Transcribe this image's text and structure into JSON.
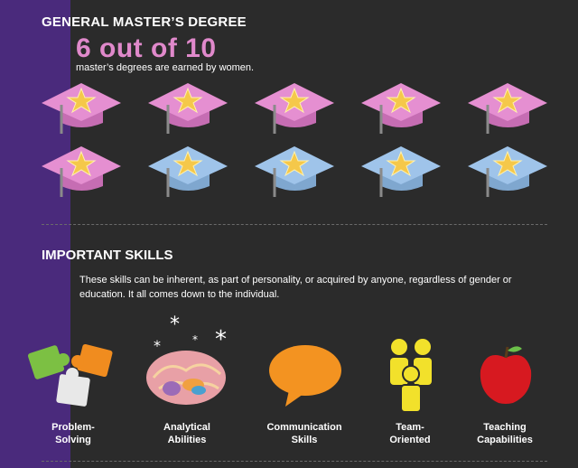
{
  "degree_section": {
    "title": "GENERAL MASTER’S DEGREE",
    "stat": "6 out of 10",
    "caption": "master’s degrees are earned by women.",
    "women_caps": 6,
    "total_caps": 10
  },
  "skills_section": {
    "title": "IMPORTANT SKILLS",
    "description": "These skills can be inherent, as part of personality, or acquired by anyone, regardless of gender or education. It all comes down to the individual.",
    "skills": [
      {
        "line1": "Problem-",
        "line2": "Solving",
        "icon": "puzzle-icon"
      },
      {
        "line1": "Analytical",
        "line2": "Abilities",
        "icon": "brain-icon"
      },
      {
        "line1": "Communication",
        "line2": "Skills",
        "icon": "speech-bubble-icon"
      },
      {
        "line1": "Team-",
        "line2": "Oriented",
        "icon": "team-icon"
      },
      {
        "line1": "Teaching",
        "line2": "Capabilities",
        "icon": "apple-icon"
      }
    ]
  },
  "colors": {
    "background": "#2b2b2b",
    "stripe": "#4a2a7c",
    "women_cap": "#e58fd1",
    "men_cap": "#9fc4ea",
    "star": "#f5c84a",
    "accent_pink": "#e089cb"
  }
}
